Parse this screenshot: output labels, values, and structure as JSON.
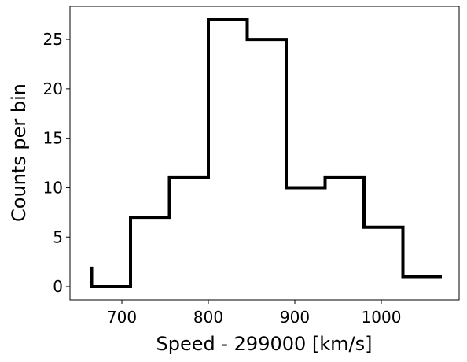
{
  "chart_data": {
    "type": "line",
    "style": "step",
    "xlabel": "Speed - 299000 [km/s]",
    "ylabel": "Counts per bin",
    "xlim": [
      640,
      1090
    ],
    "ylim": [
      -1.35,
      28.35
    ],
    "xticks": [
      700,
      800,
      900,
      1000
    ],
    "xtick_labels": [
      "700",
      "800",
      "900",
      "1000"
    ],
    "yticks": [
      0,
      5,
      10,
      15,
      20,
      25
    ],
    "ytick_labels": [
      "0",
      "5",
      "10",
      "15",
      "20",
      "25"
    ],
    "bin_edges": [
      665,
      710,
      755,
      800,
      845,
      890,
      935,
      980,
      1025,
      1070
    ],
    "counts": [
      0,
      7,
      11,
      27,
      25,
      10,
      11,
      6,
      1
    ],
    "start_value": 2,
    "line_color": "#000000",
    "grid": false,
    "legend": "none"
  }
}
